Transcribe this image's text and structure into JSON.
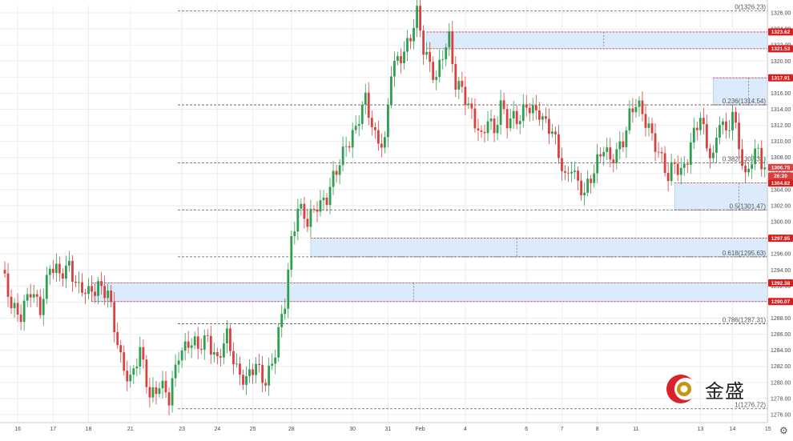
{
  "colors": {
    "up": "#2e9e4f",
    "down": "#d94040",
    "zone_fill": "#dcebfb",
    "zone_border": "#9dc3ea",
    "red_line": "#d81e1e",
    "fib_line": "#555555",
    "grid": "#eeeeee",
    "axis_text": "#4a4a4a"
  },
  "icons": {
    "settings": "gear-icon",
    "logo": "jinsheng-logo-icon"
  },
  "logo": {
    "text": "金盛"
  },
  "chart_data": {
    "type": "candlestick",
    "symbol": "",
    "grid": true,
    "ylim": [
      1275,
      1327
    ],
    "y_ticks": [
      1276,
      1278,
      1280,
      1282,
      1284,
      1286,
      1288,
      1290,
      1292,
      1294,
      1296,
      1298,
      1300,
      1302,
      1304,
      1306,
      1308,
      1310,
      1312,
      1314,
      1316,
      1318,
      1320,
      1322,
      1324,
      1326
    ],
    "x_labels": [
      {
        "label": "16",
        "bar": 5
      },
      {
        "label": "17",
        "bar": 16
      },
      {
        "label": "18",
        "bar": 27
      },
      {
        "label": "21",
        "bar": 40
      },
      {
        "label": "23",
        "bar": 56
      },
      {
        "label": "24",
        "bar": 67
      },
      {
        "label": "25",
        "bar": 78
      },
      {
        "label": "28",
        "bar": 90
      },
      {
        "label": "30",
        "bar": 109
      },
      {
        "label": "31",
        "bar": 120
      },
      {
        "label": "Feb",
        "bar": 130
      },
      {
        "label": "4",
        "bar": 144
      },
      {
        "label": "6",
        "bar": 163
      },
      {
        "label": "7",
        "bar": 174
      },
      {
        "label": "8",
        "bar": 185
      },
      {
        "label": "11",
        "bar": 197
      },
      {
        "label": "13",
        "bar": 217
      },
      {
        "label": "14",
        "bar": 227
      },
      {
        "label": "15",
        "bar": 238
      }
    ],
    "anchors": [
      [
        0,
        1293.5
      ],
      [
        3,
        1290.0
      ],
      [
        6,
        1288.5
      ],
      [
        9,
        1291.0
      ],
      [
        12,
        1289.5
      ],
      [
        15,
        1294.5
      ],
      [
        18,
        1293.0
      ],
      [
        21,
        1295.0
      ],
      [
        24,
        1291.5
      ],
      [
        27,
        1290.8
      ],
      [
        30,
        1292.5
      ],
      [
        33,
        1291.0
      ],
      [
        35,
        1286.5
      ],
      [
        37,
        1283.0
      ],
      [
        40,
        1280.5
      ],
      [
        43,
        1283.5
      ],
      [
        46,
        1278.5
      ],
      [
        49,
        1280.0
      ],
      [
        52,
        1277.5
      ],
      [
        55,
        1284.0
      ],
      [
        58,
        1285.0
      ],
      [
        61,
        1284.0
      ],
      [
        64,
        1286.0
      ],
      [
        67,
        1282.5
      ],
      [
        70,
        1285.5
      ],
      [
        73,
        1282.0
      ],
      [
        76,
        1280.0
      ],
      [
        79,
        1282.0
      ],
      [
        82,
        1280.5
      ],
      [
        85,
        1283.5
      ],
      [
        88,
        1290.0
      ],
      [
        90,
        1298.0
      ],
      [
        92,
        1302.0
      ],
      [
        95,
        1299.5
      ],
      [
        98,
        1302.5
      ],
      [
        101,
        1303.0
      ],
      [
        104,
        1306.0
      ],
      [
        107,
        1310.0
      ],
      [
        110,
        1311.5
      ],
      [
        113,
        1315.0
      ],
      [
        116,
        1311.0
      ],
      [
        119,
        1309.5
      ],
      [
        121,
        1318.5
      ],
      [
        124,
        1321.0
      ],
      [
        127,
        1323.0
      ],
      [
        129,
        1325.5
      ],
      [
        131,
        1321.5
      ],
      [
        133,
        1320.0
      ],
      [
        135,
        1318.0
      ],
      [
        137,
        1320.5
      ],
      [
        139,
        1322.5
      ],
      [
        141,
        1317.5
      ],
      [
        143,
        1317.0
      ],
      [
        145,
        1314.0
      ],
      [
        147,
        1312.0
      ],
      [
        149,
        1310.5
      ],
      [
        151,
        1313.5
      ],
      [
        153,
        1311.0
      ],
      [
        155,
        1314.0
      ],
      [
        157,
        1312.5
      ],
      [
        159,
        1313.5
      ],
      [
        161,
        1313.0
      ],
      [
        163,
        1314.0
      ],
      [
        165,
        1313.5
      ],
      [
        167,
        1314.0
      ],
      [
        169,
        1312.5
      ],
      [
        171,
        1311.0
      ],
      [
        173,
        1308.0
      ],
      [
        175,
        1305.5
      ],
      [
        177,
        1307.5
      ],
      [
        179,
        1304.5
      ],
      [
        181,
        1303.0
      ],
      [
        183,
        1305.5
      ],
      [
        185,
        1308.0
      ],
      [
        187,
        1309.5
      ],
      [
        189,
        1307.0
      ],
      [
        191,
        1308.5
      ],
      [
        193,
        1310.5
      ],
      [
        195,
        1313.5
      ],
      [
        197,
        1314.5
      ],
      [
        199,
        1313.0
      ],
      [
        201,
        1312.0
      ],
      [
        203,
        1310.0
      ],
      [
        205,
        1307.5
      ],
      [
        207,
        1305.0
      ],
      [
        209,
        1307.5
      ],
      [
        211,
        1306.5
      ],
      [
        213,
        1308.0
      ],
      [
        215,
        1310.5
      ],
      [
        217,
        1313.0
      ],
      [
        219,
        1310.0
      ],
      [
        221,
        1308.0
      ],
      [
        223,
        1312.5
      ],
      [
        225,
        1310.5
      ],
      [
        227,
        1314.0
      ],
      [
        229,
        1310.0
      ],
      [
        231,
        1305.0
      ],
      [
        233,
        1307.5
      ],
      [
        235,
        1309.0
      ],
      [
        237,
        1306.75
      ]
    ],
    "fib_levels": [
      {
        "label": "0(1326.23)",
        "value": 1326.23
      },
      {
        "label": "0.236(1314.54)",
        "value": 1314.54
      },
      {
        "label": "0.382(1307.31)",
        "value": 1307.31
      },
      {
        "label": "0.5(1301.47)",
        "value": 1301.47
      },
      {
        "label": "0.618(1295.63)",
        "value": 1295.63
      },
      {
        "label": "0.786(1287.31)",
        "value": 1287.31
      },
      {
        "label": "1(1276.72)",
        "value": 1276.72
      }
    ],
    "zones": [
      {
        "top": 1323.62,
        "bottom": 1321.53,
        "from_bar": 132,
        "arrow_bar": 187
      },
      {
        "top": 1317.91,
        "bottom": 1314.54,
        "from_bar": 221,
        "arrow_bar": 232
      },
      {
        "top": 1304.82,
        "bottom": 1301.47,
        "from_bar": 209,
        "arrow_bar": 229
      },
      {
        "top": 1297.95,
        "bottom": 1295.63,
        "from_bar": 96,
        "arrow_bar": 160
      },
      {
        "top": 1292.38,
        "bottom": 1290.07,
        "from_bar": 28,
        "arrow_bar": 128
      }
    ],
    "price_tags": [
      {
        "value": 1323.62,
        "label": "1323.62",
        "color": "#d81e1e"
      },
      {
        "value": 1321.53,
        "label": "1321.53",
        "color": "#d81e1e"
      },
      {
        "value": 1317.91,
        "label": "1317.91",
        "color": "#d81e1e"
      },
      {
        "value": 1306.75,
        "label": "1306.75",
        "color": "#d94040"
      },
      {
        "value": 1305.7,
        "label": "26:20",
        "color": "#d94040"
      },
      {
        "value": 1304.82,
        "label": "1304.82",
        "color": "#d81e1e"
      },
      {
        "value": 1297.95,
        "label": "1297.95",
        "color": "#d81e1e"
      },
      {
        "value": 1292.38,
        "label": "1292.38",
        "color": "#d81e1e"
      },
      {
        "value": 1290.07,
        "label": "1290.07",
        "color": "#d81e1e"
      }
    ],
    "last_price": 1306.75
  }
}
